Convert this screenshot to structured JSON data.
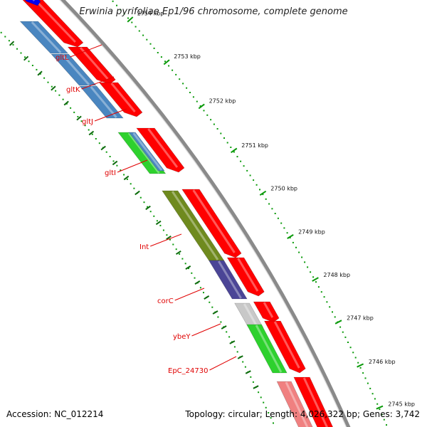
{
  "title": "Erwinia pyrifoliae Ep1/96 chromosome, complete genome",
  "footer": {
    "accession": "Accession: NC_012214",
    "summary": "Topology: circular; Length: 4,026,322 bp; Genes: 3,742"
  },
  "colors": {
    "cds_forward": "#ff0000",
    "cds_blue": "#4a86c0",
    "cds_green": "#2ed12e",
    "cds_olive": "#6f8a1e",
    "cds_purple": "#4b4596",
    "cds_grey": "#c8c8c8",
    "cds_pink": "#f08080",
    "tick_green": "#0a9a0a",
    "backbone": "#8a8a8a",
    "label_red": "#e00000"
  },
  "scale_ticks": [
    {
      "kbp": 2754,
      "label": "2754 kbp"
    },
    {
      "kbp": 2753,
      "label": "2753 kbp"
    },
    {
      "kbp": 2752,
      "label": "2752 kbp"
    },
    {
      "kbp": 2751,
      "label": "2751 kbp"
    },
    {
      "kbp": 2750,
      "label": "2750 kbp"
    },
    {
      "kbp": 2749,
      "label": "2749 kbp"
    },
    {
      "kbp": 2748,
      "label": "2748 kbp"
    },
    {
      "kbp": 2747,
      "label": "2747 kbp"
    },
    {
      "kbp": 2746,
      "label": "2746 kbp"
    },
    {
      "kbp": 2745,
      "label": "2745 kbp"
    }
  ],
  "genes": [
    {
      "name": "gltL",
      "color": "cds_blue"
    },
    {
      "name": "gltK",
      "color": "cds_blue"
    },
    {
      "name": "gltJ",
      "color": "cds_blue"
    },
    {
      "name": "gltI",
      "color": "cds_green"
    },
    {
      "name": "Int",
      "color": "cds_olive"
    },
    {
      "name": "corC",
      "color": "cds_purple"
    },
    {
      "name": "ybeY",
      "color": "cds_grey"
    },
    {
      "name": "EpC_24730",
      "color": "cds_green"
    }
  ]
}
